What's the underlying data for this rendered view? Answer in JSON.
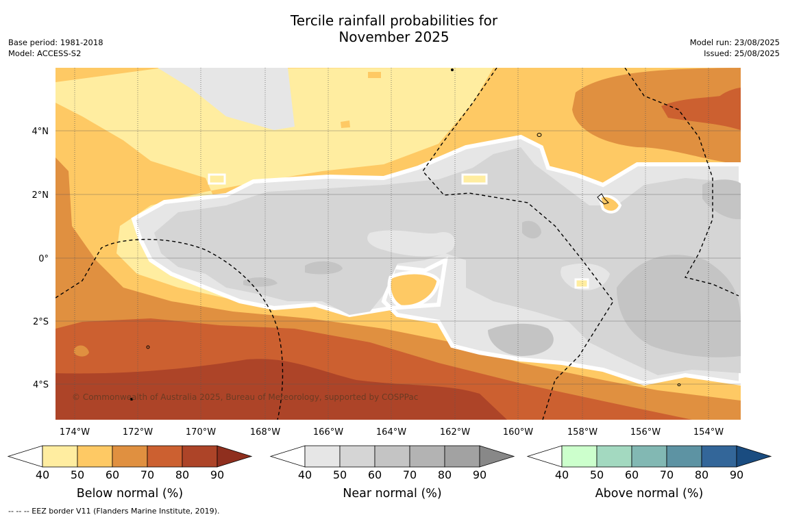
{
  "title_line1": "Tercile rainfall probabilities for",
  "title_line2": "November 2025",
  "base_period": "Base period: 1981-2018",
  "model": "Model: ACCESS-S2",
  "model_run": "Model run: 23/08/2025",
  "issued": "Issued: 25/08/2025",
  "copyright": "© Commonwealth of Australia 2025, Bureau of Meteorology, supported by COSPPac",
  "footer_note": "--  --  -- EEZ border V11 (Flanders Marine Institute, 2019).",
  "x_ticks": [
    "174°W",
    "172°W",
    "170°W",
    "168°W",
    "166°W",
    "164°W",
    "162°W",
    "160°W",
    "158°W",
    "156°W",
    "154°W"
  ],
  "y_ticks": [
    "4°N",
    "2°N",
    "0°",
    "2°S",
    "4°S"
  ],
  "colors": {
    "below": [
      "#ffeda0",
      "#fec964",
      "#e09040",
      "#cc6030",
      "#ad4428",
      "#8f2f1e"
    ],
    "near": [
      "#e6e6e6",
      "#d5d5d5",
      "#c4c4c4",
      "#b3b3b3",
      "#a2a2a2",
      "#888888"
    ],
    "above": [
      "#ccffcc",
      "#a3d9c0",
      "#82b8b3",
      "#5d93a3",
      "#336699",
      "#1a4c80"
    ]
  },
  "colorbars": [
    {
      "label": "Below normal (%)",
      "ticks": [
        "40",
        "50",
        "60",
        "70",
        "80",
        "90"
      ],
      "palette": "below"
    },
    {
      "label": "Near normal (%)",
      "ticks": [
        "40",
        "50",
        "60",
        "70",
        "80",
        "90"
      ],
      "palette": "near"
    },
    {
      "label": "Above normal (%)",
      "ticks": [
        "40",
        "50",
        "60",
        "70",
        "80",
        "90"
      ],
      "palette": "above"
    }
  ]
}
